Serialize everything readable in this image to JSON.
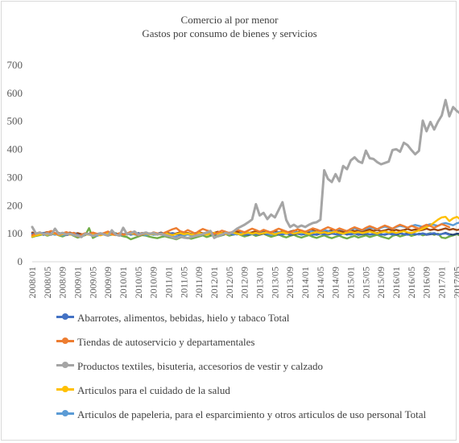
{
  "chart_data": {
    "type": "line",
    "title": "Comercio al por menor",
    "subtitle": "Gastos por consumo de bienes y servicios",
    "xlabel": "",
    "ylabel": "",
    "ylim": [
      0,
      700
    ],
    "yticks": [
      0,
      100,
      200,
      300,
      400,
      500,
      600,
      700
    ],
    "grid": false,
    "legend_position": "bottom",
    "x_start": "2008/01",
    "x_end": "2017/07",
    "xtick_labels": [
      "2008/01",
      "2008/05",
      "2008/09",
      "2009/01",
      "2009/05",
      "2009/09",
      "2010/01",
      "2010/05",
      "2010/09",
      "2011/01",
      "2011/05",
      "2011/09",
      "2012/01",
      "2012/05",
      "2012/09",
      "2013/01",
      "2013/05",
      "2013/09",
      "2014/01",
      "2014/05",
      "2014/09",
      "2015/01",
      "2015/05",
      "2015/09",
      "2016/01",
      "2016/05",
      "2016/09",
      "2017/01",
      "2017/05"
    ],
    "series": [
      {
        "name": "Abarrotes, alimentos, bebidas, hielo y tabaco Total",
        "color": "#4472c4",
        "values": [
          100,
          96,
          101,
          103,
          98,
          100,
          102,
          99,
          101,
          97,
          99,
          103,
          96,
          94,
          98,
          100,
          97,
          99,
          102,
          98,
          96,
          100,
          99,
          97,
          98,
          101,
          96,
          99,
          100,
          97,
          103,
          99,
          98,
          100,
          102,
          97,
          99,
          101,
          96,
          98,
          100,
          97,
          99,
          102,
          98,
          96,
          100,
          99,
          97,
          101,
          98,
          100,
          102,
          97,
          99,
          101,
          96,
          98,
          100,
          97,
          99,
          103,
          98,
          96,
          100,
          99,
          97,
          101,
          98,
          100,
          102,
          97,
          99,
          101,
          96,
          98,
          100,
          97,
          99,
          103,
          98,
          96,
          100,
          99,
          97,
          101,
          98,
          100,
          102,
          97,
          99,
          101,
          96,
          98,
          100,
          97,
          99,
          103,
          98,
          96,
          100,
          99,
          97,
          101,
          98,
          100,
          102,
          97,
          99,
          101,
          96
        ]
      },
      {
        "name": "Tiendas de autoservicio y departamentales",
        "color": "#ed7d31",
        "values": [
          95,
          100,
          105,
          98,
          104,
          110,
          102,
          96,
          101,
          106,
          100,
          103,
          90,
          96,
          102,
          98,
          104,
          100,
          97,
          103,
          108,
          99,
          95,
          102,
          96,
          101,
          107,
          100,
          94,
          98,
          103,
          99,
          105,
          101,
          97,
          104,
          110,
          116,
          120,
          109,
          105,
          113,
          107,
          100,
          110,
          117,
          112,
          108,
          98,
          104,
          111,
          107,
          102,
          108,
          114,
          110,
          105,
          112,
          118,
          113,
          107,
          114,
          109,
          104,
          112,
          118,
          113,
          108,
          103,
          110,
          116,
          112,
          107,
          113,
          119,
          115,
          110,
          117,
          123,
          118,
          112,
          119,
          114,
          109,
          117,
          123,
          118,
          113,
          121,
          127,
          122,
          116,
          123,
          129,
          124,
          118,
          126,
          132,
          127,
          121,
          128,
          123,
          118,
          126,
          132,
          127,
          121,
          128,
          134,
          129,
          123
        ]
      },
      {
        "name": "Productos textiles, bisuteria, accesorios de vestir y calzado",
        "color": "#a5a5a5",
        "values": [
          124,
          100,
          104,
          99,
          101,
          96,
          118,
          99,
          103,
          97,
          100,
          95,
          93,
          88,
          100,
          98,
          92,
          96,
          101,
          97,
          93,
          112,
          97,
          93,
          121,
          98,
          102,
          108,
          96,
          101,
          104,
          99,
          103,
          97,
          100,
          95,
          92,
          87,
          83,
          90,
          86,
          84,
          89,
          92,
          95,
          98,
          104,
          110,
          85,
          92,
          97,
          103,
          99,
          107,
          118,
          125,
          132,
          141,
          151,
          205,
          165,
          174,
          152,
          168,
          158,
          185,
          212,
          149,
          124,
          132,
          123,
          129,
          124,
          132,
          138,
          141,
          150,
          326,
          295,
          284,
          312,
          287,
          341,
          330,
          361,
          372,
          358,
          352,
          396,
          369,
          366,
          355,
          347,
          352,
          357,
          398,
          401,
          392,
          424,
          415,
          398,
          383,
          395,
          503,
          465,
          498,
          471,
          499,
          521,
          576,
          518,
          551,
          537,
          527,
          500
        ]
      },
      {
        "name": "Articulos para el cuidado de la salud",
        "color": "#ffc000",
        "values": [
          90,
          94,
          97,
          99,
          96,
          99,
          101,
          95,
          98,
          100,
          96,
          99,
          91,
          95,
          98,
          96,
          99,
          97,
          94,
          98,
          101,
          97,
          95,
          99,
          96,
          98,
          101,
          99,
          95,
          98,
          101,
          97,
          100,
          96,
          99,
          102,
          98,
          95,
          99,
          102,
          98,
          101,
          97,
          100,
          103,
          99,
          96,
          100,
          103,
          99,
          102,
          98,
          101,
          104,
          100,
          97,
          101,
          104,
          100,
          103,
          99,
          102,
          105,
          101,
          98,
          102,
          105,
          101,
          104,
          100,
          103,
          106,
          102,
          99,
          103,
          106,
          102,
          105,
          101,
          104,
          107,
          103,
          100,
          104,
          107,
          103,
          106,
          102,
          105,
          108,
          104,
          101,
          105,
          108,
          104,
          107,
          103,
          106,
          109,
          105,
          102,
          107,
          112,
          118,
          124,
          130,
          140,
          150,
          158,
          160,
          145,
          155,
          160,
          150,
          162
        ]
      },
      {
        "name": "Articulos de papeleria, para el esparcimiento y otros articulos de uso personal Total",
        "color": "#5b9bd5",
        "values": [
          93,
          97,
          100,
          98,
          95,
          101,
          96,
          99,
          94,
          98,
          101,
          97,
          95,
          93,
          97,
          99,
          96,
          92,
          98,
          100,
          95,
          97,
          99,
          94,
          96,
          98,
          101,
          97,
          94,
          99,
          95,
          98,
          96,
          100,
          97,
          94,
          92,
          90,
          88,
          91,
          94,
          97,
          95,
          98,
          101,
          99,
          96,
          100,
          103,
          98,
          101,
          99,
          104,
          100,
          97,
          102,
          105,
          101,
          98,
          103,
          100,
          104,
          101,
          97,
          102,
          106,
          103,
          99,
          104,
          108,
          105,
          101,
          107,
          111,
          108,
          104,
          109,
          113,
          110,
          106,
          112,
          116,
          113,
          109,
          115,
          119,
          116,
          112,
          118,
          122,
          119,
          115,
          121,
          125,
          122,
          118,
          124,
          128,
          125,
          121,
          127,
          131,
          128,
          124,
          130,
          134,
          131,
          128,
          135,
          138,
          134,
          130,
          137,
          141,
          138
        ]
      },
      {
        "name": "",
        "color": "#70ad47",
        "values": [
          88,
          92,
          95,
          98,
          93,
          97,
          100,
          94,
          90,
          96,
          99,
          92,
          86,
          90,
          95,
          120,
          85,
          92,
          96,
          99,
          93,
          97,
          102,
          95,
          91,
          88,
          80,
          85,
          90,
          95,
          93,
          89,
          86,
          84,
          88,
          91,
          87,
          84,
          80,
          86,
          89,
          85,
          82,
          86,
          90,
          94,
          88,
          92,
          96,
          90,
          94,
          99,
          93,
          97,
          101,
          95,
          90,
          94,
          98,
          92,
          96,
          100,
          94,
          89,
          93,
          97,
          91,
          87,
          92,
          96,
          90,
          86,
          91,
          95,
          89,
          85,
          90,
          94,
          88,
          84,
          89,
          93,
          87,
          83,
          88,
          92,
          86,
          90,
          94,
          88,
          92,
          96,
          90,
          86,
          82,
          92,
          96,
          90,
          94,
          98,
          92,
          96,
          100,
          94,
          98,
          102,
          96,
          100,
          86,
          84,
          90,
          94,
          98,
          92,
          96
        ]
      },
      {
        "name": "",
        "color": "#264478",
        "values": [
          100,
          98,
          103,
          96,
          101,
          99,
          97,
          102,
          100,
          95,
          98,
          103,
          96,
          97,
          100,
          98,
          101,
          97,
          99,
          102,
          98,
          96,
          100,
          99,
          97,
          101,
          98,
          100,
          102,
          97,
          99,
          101,
          96,
          98,
          100,
          97,
          99,
          102,
          98,
          96,
          100,
          99,
          97,
          101,
          98,
          100,
          102,
          97,
          99,
          101,
          96,
          98,
          100,
          97,
          99,
          103,
          98,
          96,
          100,
          99,
          97,
          101,
          98,
          100,
          102,
          97,
          99,
          101,
          96,
          98,
          100,
          97,
          99,
          103,
          98,
          96,
          100,
          99,
          97,
          101,
          98,
          100,
          102,
          97,
          99,
          101,
          96,
          98,
          100,
          97,
          99,
          103,
          98,
          96,
          100,
          99,
          97,
          101,
          98,
          100,
          102,
          97,
          99,
          101,
          96,
          98,
          100,
          97,
          99,
          103,
          98,
          96,
          100,
          99,
          97
        ]
      },
      {
        "name": "",
        "color": "#9e480e",
        "values": [
          104,
          100,
          98,
          102,
          106,
          101,
          99,
          103,
          97,
          101,
          104,
          99,
          102,
          98,
          96,
          100,
          103,
          99,
          101,
          97,
          100,
          104,
          98,
          101,
          99,
          97,
          102,
          100,
          98,
          103,
          99,
          101,
          97,
          100,
          104,
          99,
          102,
          98,
          101,
          105,
          100,
          103,
          99,
          102,
          106,
          101,
          104,
          100,
          103,
          107,
          102,
          105,
          101,
          104,
          108,
          103,
          106,
          102,
          105,
          109,
          104,
          107,
          103,
          106,
          110,
          105,
          108,
          104,
          107,
          111,
          106,
          109,
          105,
          108,
          112,
          107,
          110,
          106,
          109,
          113,
          108,
          111,
          107,
          110,
          114,
          109,
          112,
          108,
          111,
          115,
          110,
          113,
          109,
          112,
          116,
          111,
          114,
          110,
          113,
          117,
          112,
          115,
          111,
          114,
          118,
          113,
          116,
          112,
          115,
          119,
          114,
          117,
          113,
          116,
          120
        ]
      }
    ]
  },
  "legend": {
    "items": [
      {
        "label": "Abarrotes, alimentos, bebidas, hielo y tabaco Total",
        "color": "#4472c4"
      },
      {
        "label": "Tiendas de autoservicio y departamentales",
        "color": "#ed7d31"
      },
      {
        "label": "Productos textiles, bisuteria, accesorios de vestir y calzado",
        "color": "#a5a5a5"
      },
      {
        "label": "Articulos para el cuidado de la salud",
        "color": "#ffc000"
      },
      {
        "label": "Articulos de papeleria, para el esparcimiento y otros articulos de uso personal Total",
        "color": "#5b9bd5"
      }
    ]
  }
}
